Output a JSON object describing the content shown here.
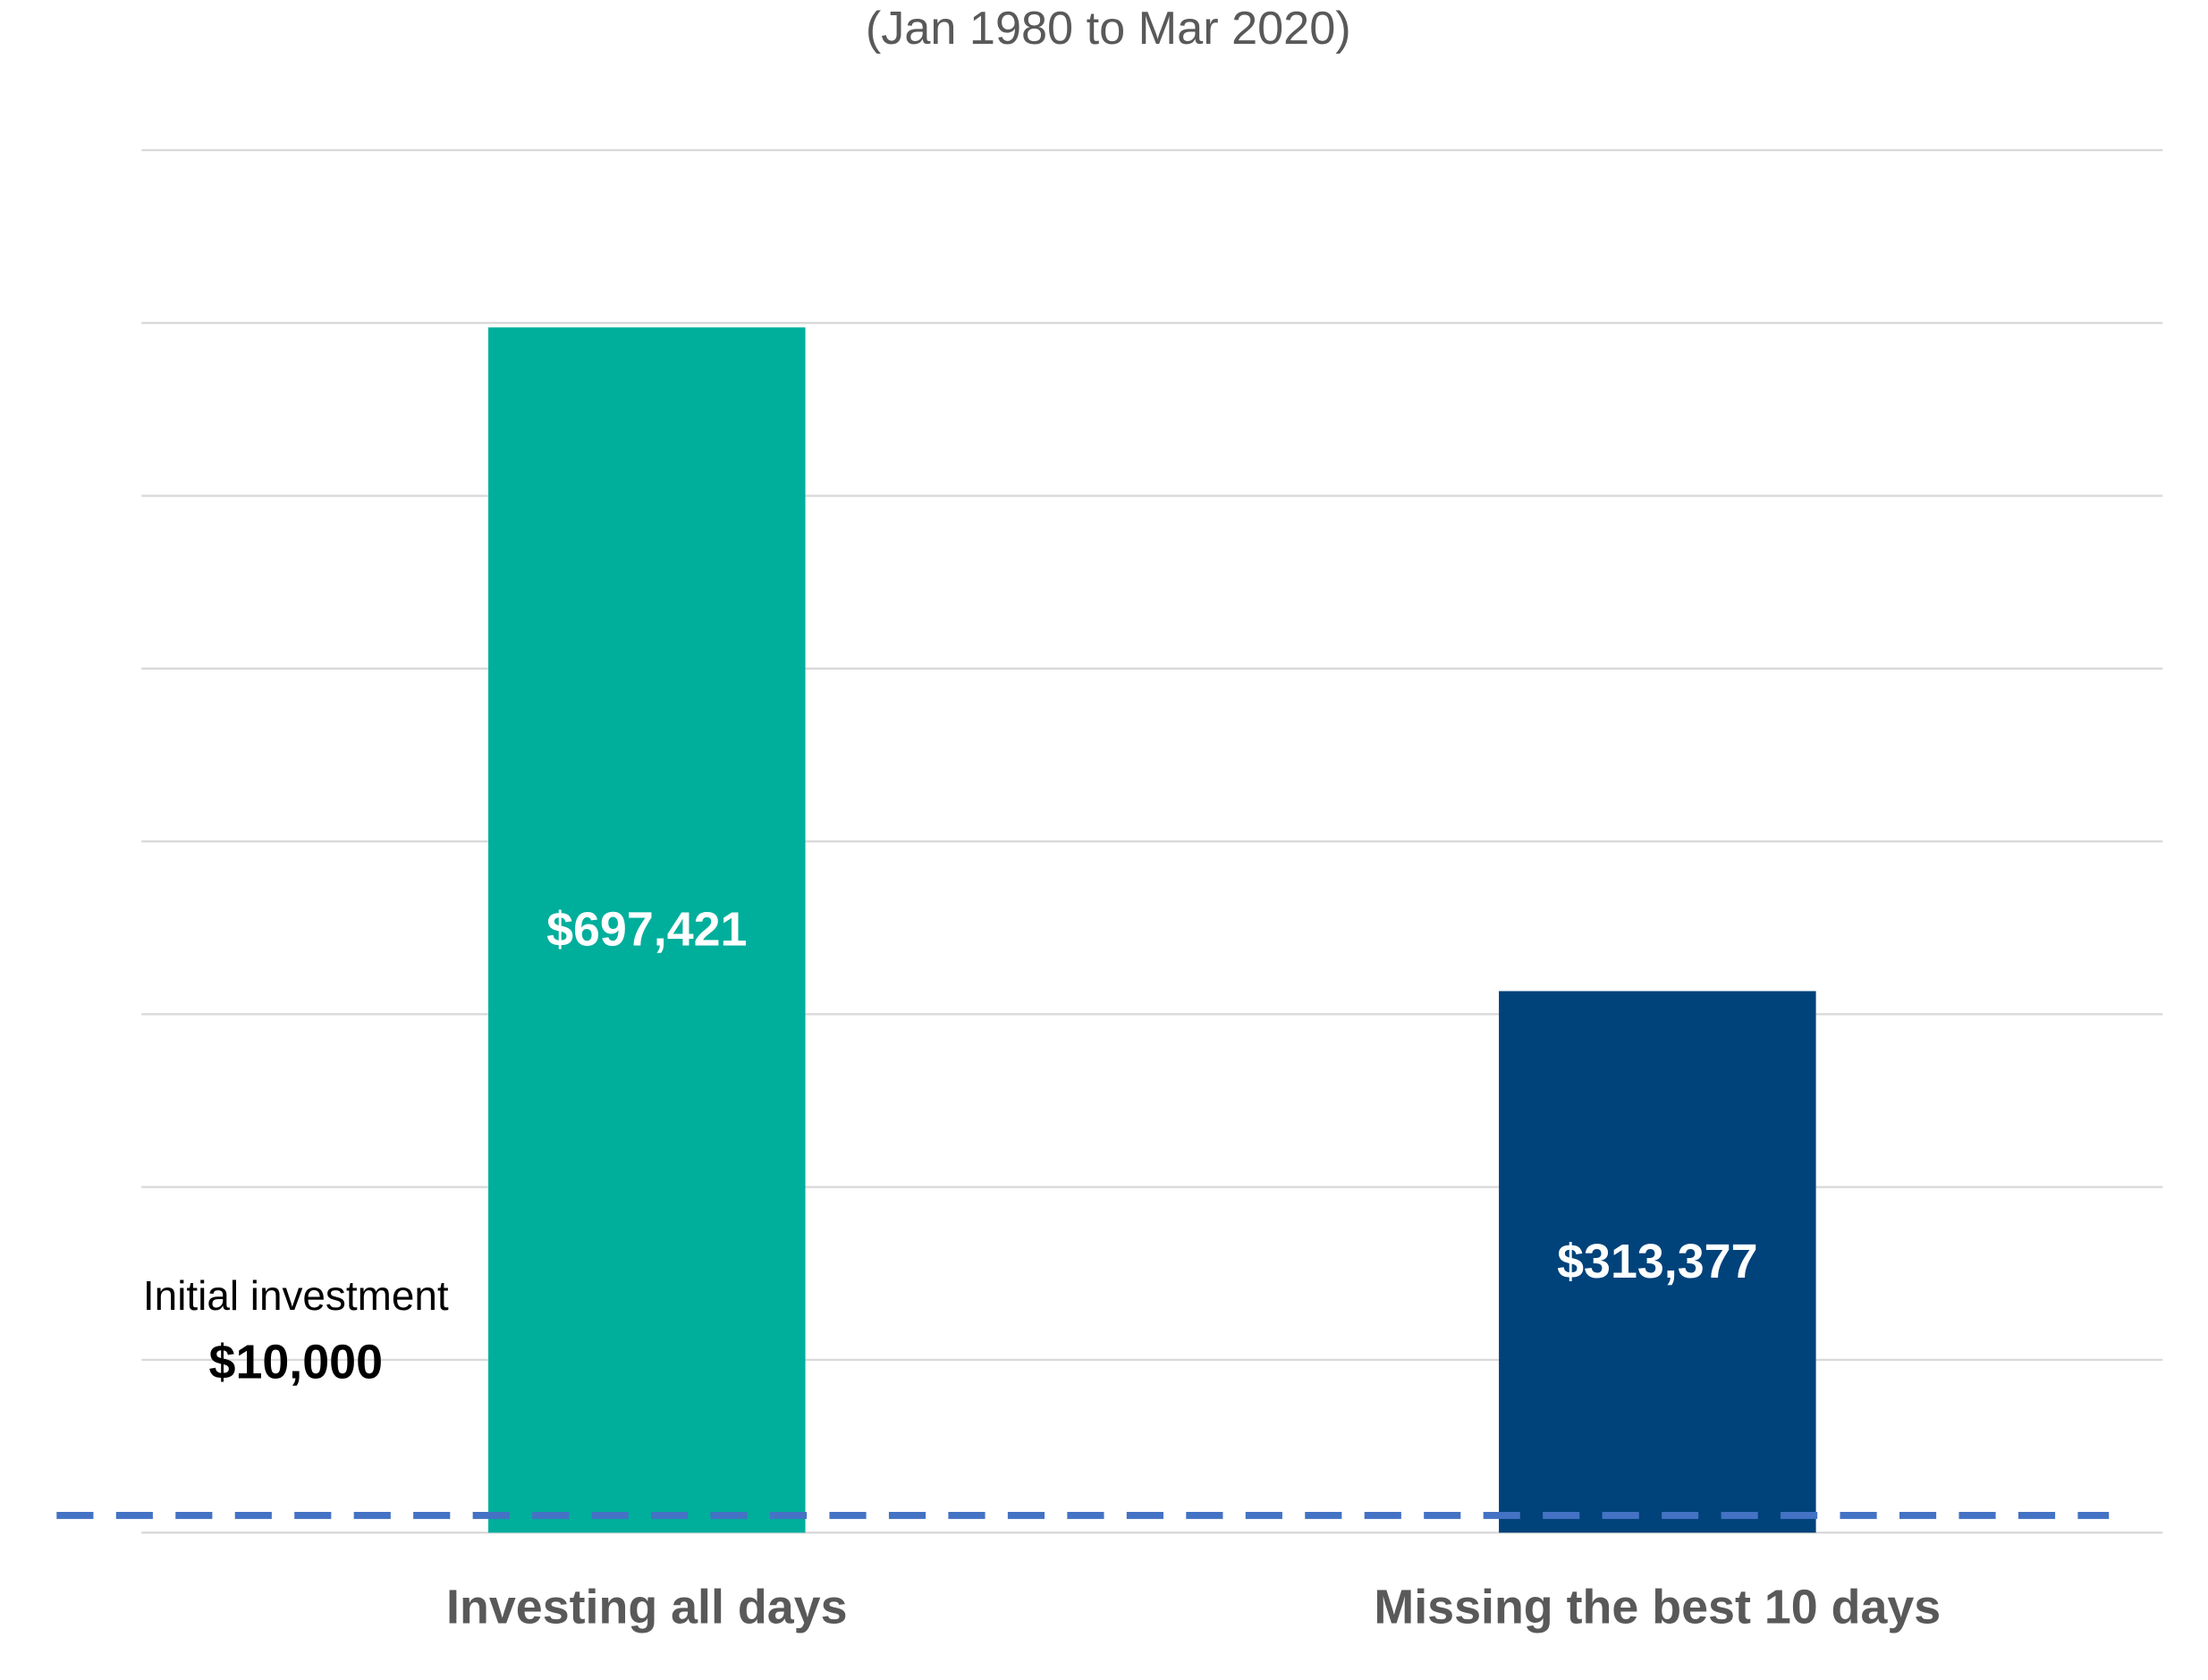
{
  "chart_data": {
    "type": "bar",
    "subtitle": "(Jan 1980 to Mar 2020)",
    "categories": [
      "Investing all days",
      "Missing the best 10 days"
    ],
    "values": [
      697421,
      313377
    ],
    "value_labels": [
      "$697,421",
      "$313,377"
    ],
    "colors": [
      "#00ae9c",
      "#00427a"
    ],
    "ylim": [
      0,
      800000
    ],
    "yticks": [
      0,
      100000,
      200000,
      300000,
      400000,
      500000,
      600000,
      700000,
      800000
    ],
    "grid": true,
    "reference_line": {
      "value": 10000,
      "label": "Initial investment",
      "value_label": "$10,000",
      "color": "#4472c4"
    }
  }
}
